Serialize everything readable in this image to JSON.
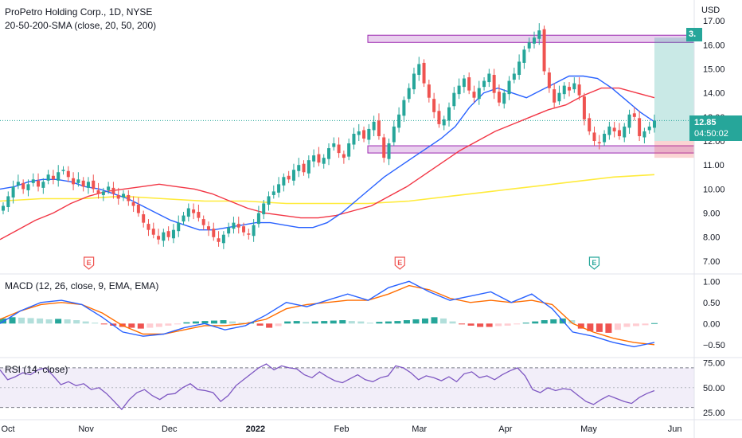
{
  "header": {
    "symbol_line": "ProPetro Holding Corp., 1D, NYSE",
    "sma_line": "20-50-200-SMA (close, 20, 50, 200)",
    "macd_line": "MACD (12, 26, close, 9, EMA, EMA)",
    "rsi_line": "RSI (14, close)"
  },
  "axis": {
    "currency": "USD"
  },
  "labels": {
    "last_price": "12.85",
    "countdown": "04:50:02",
    "target_tag": "3."
  },
  "colors": {
    "up": "#26a69a",
    "down": "#ef5350",
    "sma20": "#2962ff",
    "sma50": "#f23645",
    "sma200": "#ffeb3b",
    "macd": "#2962ff",
    "signal": "#ff6d00",
    "rsi": "#7e57c2",
    "zone": "#9c27b0",
    "target": "#26a69a",
    "stop": "#ef5350"
  },
  "earnings_marker_text": "E",
  "chart_data": [
    {
      "type": "candlestick",
      "title": "ProPetro Holding Corp., 1D, NYSE",
      "ylabel": "USD",
      "ylim": [
        6.6,
        17.6
      ],
      "y_ticks": [
        "17.00",
        "16.00",
        "15.00",
        "14.00",
        "13.00",
        "12.00",
        "11.00",
        "10.00",
        "9.00",
        "8.00",
        "7.00"
      ],
      "x_ticks": [
        "Oct",
        "Nov",
        "Dec",
        "2022",
        "Feb",
        "Mar",
        "Apr",
        "May",
        "Jun"
      ],
      "grid": false,
      "x_range": [
        "2021-10-01",
        "2022-06-08"
      ],
      "closes": [
        9.3,
        9.7,
        10.1,
        10.3,
        10.0,
        10.2,
        10.4,
        10.1,
        10.3,
        10.6,
        10.4,
        10.7,
        10.8,
        10.5,
        10.2,
        10.4,
        10.1,
        10.3,
        10.0,
        9.8,
        9.9,
        10.1,
        9.8,
        9.6,
        9.8,
        9.5,
        9.3,
        9.0,
        8.6,
        8.3,
        8.1,
        7.9,
        8.2,
        8.0,
        8.3,
        8.6,
        8.9,
        9.2,
        9.0,
        8.8,
        8.5,
        8.3,
        8.0,
        7.8,
        8.1,
        8.4,
        8.6,
        8.4,
        8.2,
        8.1,
        8.5,
        9.0,
        9.4,
        9.7,
        9.9,
        10.2,
        10.5,
        10.4,
        10.8,
        11.0,
        10.7,
        11.2,
        11.4,
        11.1,
        11.3,
        11.7,
        11.9,
        11.5,
        11.3,
        11.9,
        12.3,
        12.4,
        12.1,
        12.5,
        12.8,
        12.2,
        11.3,
        11.9,
        12.6,
        13.1,
        13.7,
        14.2,
        14.8,
        15.2,
        14.4,
        13.8,
        13.2,
        12.7,
        12.9,
        13.4,
        14.0,
        14.3,
        14.6,
        14.1,
        13.8,
        14.2,
        14.5,
        14.8,
        14.0,
        13.6,
        14.0,
        14.5,
        14.8,
        15.3,
        15.8,
        16.1,
        16.3,
        16.6,
        14.9,
        14.2,
        13.6,
        14.0,
        14.3,
        14.1,
        14.4,
        13.9,
        12.9,
        12.4,
        12.0,
        11.9,
        12.3,
        12.6,
        12.4,
        12.2,
        12.6,
        13.1,
        13.0,
        12.2,
        12.4,
        12.6,
        12.85
      ],
      "series": [
        {
          "name": "SMA 20",
          "values": [
            10.0,
            10.1,
            10.3,
            10.4,
            10.4,
            10.3,
            10.1,
            10.0,
            9.8,
            9.6,
            9.3,
            9.0,
            8.7,
            8.5,
            8.3,
            8.3,
            8.4,
            8.5,
            8.6,
            8.6,
            8.5,
            8.4,
            8.4,
            8.6,
            9.0,
            9.5,
            10.0,
            10.5,
            10.9,
            11.3,
            11.7,
            12.1,
            12.6,
            13.4,
            14.0,
            14.2,
            14.0,
            13.8,
            14.1,
            14.4,
            14.7,
            14.7,
            14.6,
            14.2,
            13.7,
            13.2,
            12.8
          ]
        },
        {
          "name": "SMA 50",
          "values": [
            7.9,
            8.3,
            8.7,
            9.0,
            9.4,
            9.7,
            9.9,
            10.0,
            10.1,
            10.2,
            10.1,
            10.0,
            9.8,
            9.5,
            9.2,
            9.0,
            8.9,
            8.8,
            8.8,
            8.9,
            9.1,
            9.3,
            9.7,
            10.1,
            10.6,
            11.1,
            11.6,
            12.0,
            12.4,
            12.7,
            13.0,
            13.3,
            13.5,
            13.9,
            14.2,
            14.2,
            14.0,
            13.8
          ]
        },
        {
          "name": "SMA 200",
          "values": [
            9.5,
            9.6,
            9.6,
            9.7,
            9.6,
            9.5,
            9.5,
            9.4,
            9.4,
            9.4,
            9.5,
            9.7,
            9.9,
            10.1,
            10.3,
            10.5,
            10.6
          ]
        }
      ],
      "zones": [
        {
          "from": 16.1,
          "to": 16.4
        },
        {
          "from": 11.5,
          "to": 11.8
        }
      ],
      "position": {
        "entry": 12.0,
        "target": 16.3,
        "stop": 11.3
      },
      "earnings_dates": [
        "2021-11-02",
        "2022-02-22",
        "2022-05-03"
      ]
    },
    {
      "type": "line",
      "title": "MACD (12, 26, close, 9, EMA, EMA)",
      "ylim": [
        -0.75,
        1.1
      ],
      "y_ticks": [
        "1.00",
        "0.50",
        "0.00",
        "−0.50"
      ],
      "series": [
        {
          "name": "MACD",
          "values": [
            0.0,
            0.3,
            0.5,
            0.55,
            0.45,
            0.15,
            -0.2,
            -0.3,
            -0.25,
            -0.1,
            0.0,
            -0.15,
            -0.05,
            0.2,
            0.5,
            0.4,
            0.55,
            0.7,
            0.55,
            0.85,
            1.0,
            0.75,
            0.55,
            0.65,
            0.75,
            0.5,
            0.7,
            0.35,
            -0.2,
            -0.3,
            -0.45,
            -0.55,
            -0.45
          ]
        },
        {
          "name": "Signal",
          "values": [
            0.1,
            0.3,
            0.45,
            0.5,
            0.45,
            0.25,
            -0.05,
            -0.25,
            -0.25,
            -0.15,
            -0.05,
            -0.05,
            0.0,
            0.1,
            0.35,
            0.45,
            0.5,
            0.55,
            0.55,
            0.7,
            0.9,
            0.8,
            0.6,
            0.5,
            0.55,
            0.5,
            0.55,
            0.45,
            0.0,
            -0.2,
            -0.35,
            -0.45,
            -0.5
          ]
        }
      ],
      "histogram": [
        0.12,
        0.15,
        0.14,
        0.13,
        0.12,
        0.1,
        0.11,
        0.1,
        0.08,
        0.05,
        0.02,
        -0.02,
        -0.05,
        -0.08,
        -0.1,
        -0.12,
        -0.1,
        -0.08,
        -0.05,
        -0.02,
        0.03,
        0.05,
        0.06,
        0.07,
        0.08,
        0.05,
        0.02,
        0.03,
        -0.05,
        -0.1,
        -0.06,
        0.05,
        0.06,
        0.04,
        0.05,
        0.06,
        0.07,
        0.08,
        0.06,
        0.05,
        0.02,
        0.04,
        0.05,
        0.06,
        0.08,
        0.1,
        0.12,
        0.15,
        0.12,
        0.05,
        -0.02,
        -0.05,
        -0.08,
        -0.08,
        -0.06,
        -0.05,
        -0.02,
        0.02,
        0.05,
        0.08,
        0.1,
        0.12,
        0.08,
        -0.12,
        -0.18,
        -0.2,
        -0.22,
        -0.15,
        -0.08,
        -0.06,
        -0.04,
        0.01
      ]
    },
    {
      "type": "line",
      "title": "RSI (14, close)",
      "ylim": [
        20,
        78
      ],
      "y_ticks": [
        "75.00",
        "50.00",
        "25.00"
      ],
      "band": [
        30,
        70
      ],
      "series": [
        {
          "name": "RSI",
          "values": [
            68,
            58,
            61,
            65,
            63,
            68,
            70,
            62,
            53,
            56,
            52,
            54,
            48,
            50,
            44,
            36,
            28,
            38,
            45,
            48,
            42,
            38,
            43,
            44,
            50,
            54,
            48,
            47,
            45,
            36,
            42,
            52,
            58,
            64,
            70,
            74,
            68,
            72,
            70,
            69,
            63,
            60,
            66,
            61,
            57,
            55,
            59,
            63,
            58,
            56,
            60,
            62,
            72,
            70,
            65,
            58,
            62,
            60,
            57,
            61,
            56,
            64,
            66,
            60,
            62,
            58,
            63,
            67,
            70,
            62,
            48,
            45,
            50,
            47,
            49,
            48,
            42,
            36,
            33,
            38,
            42,
            39,
            36,
            34,
            40,
            44,
            47
          ]
        }
      ]
    }
  ]
}
